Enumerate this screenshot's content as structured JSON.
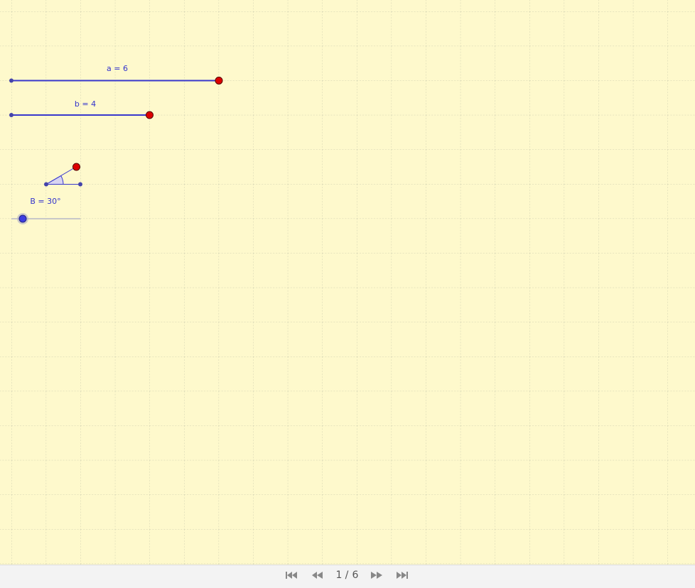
{
  "labels": {
    "segment_a": "a = 6",
    "segment_b": "b = 4",
    "angle_slider": "B = 30°"
  },
  "navigation": {
    "current": "1",
    "separator": "/",
    "total": "6"
  }
}
